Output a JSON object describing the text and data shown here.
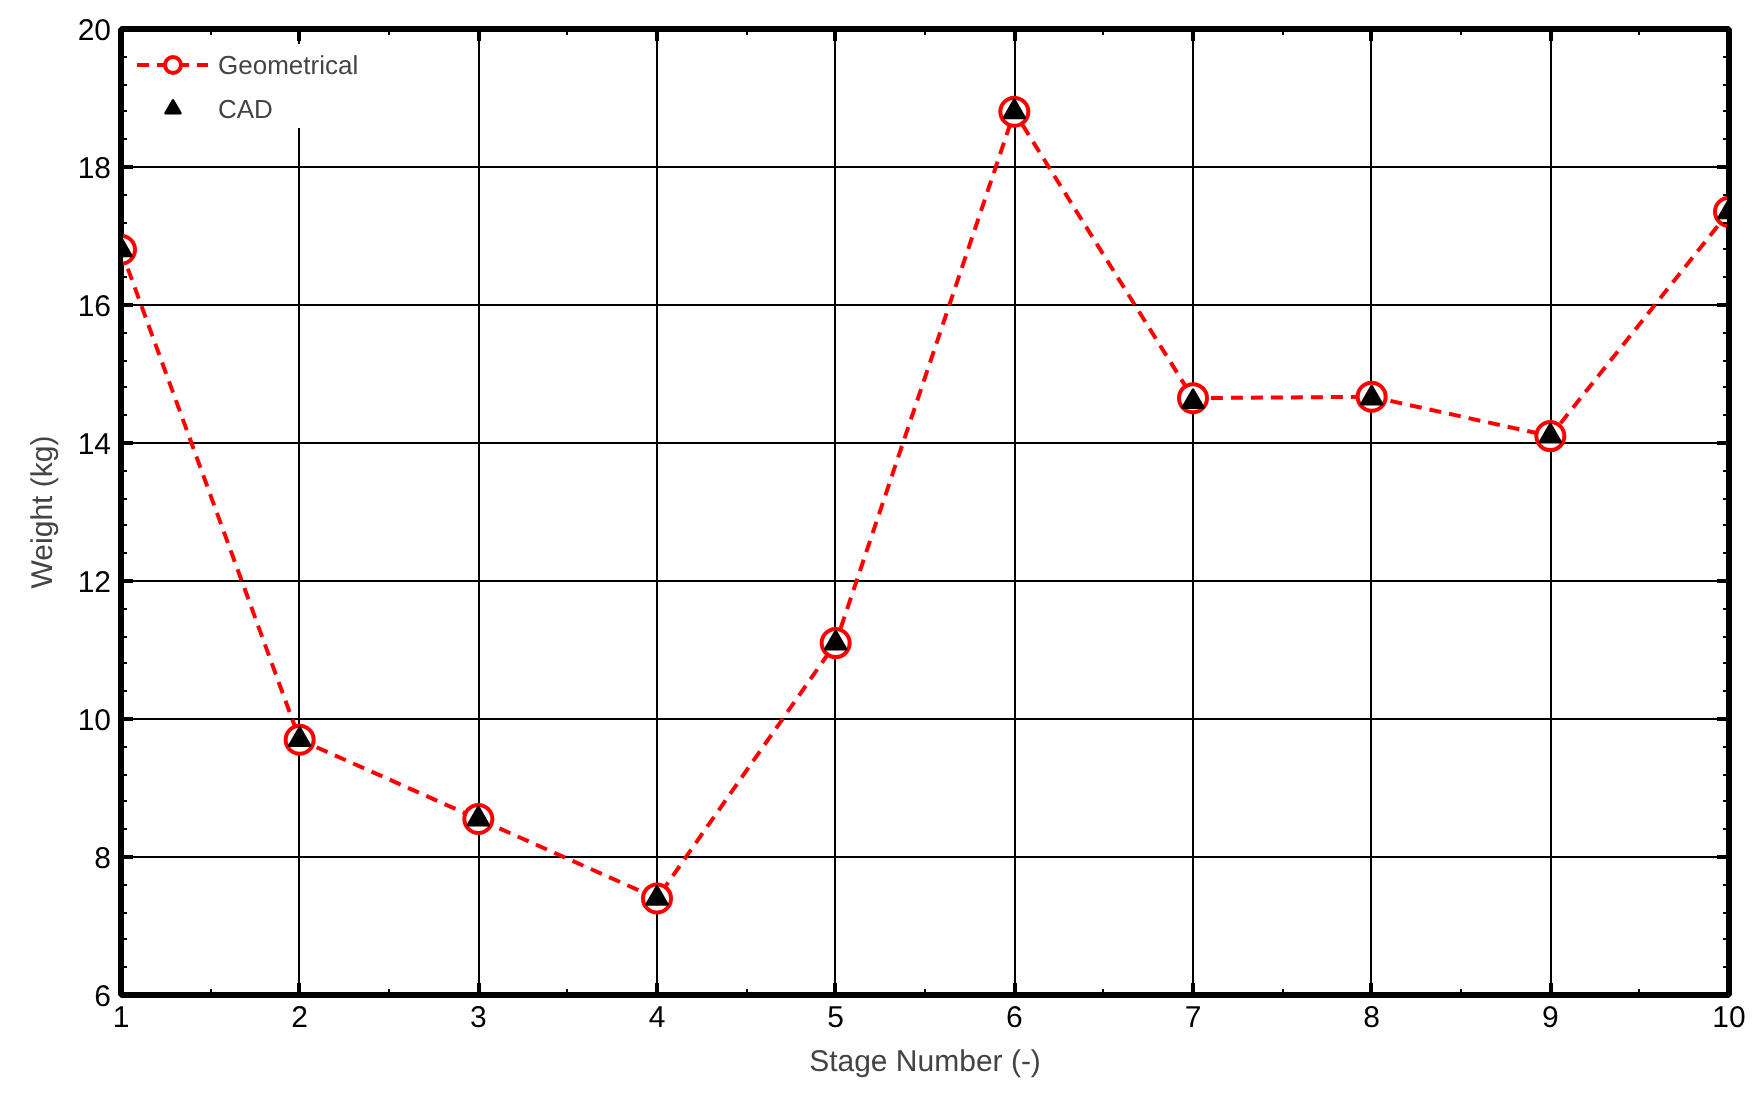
{
  "chart_data": {
    "type": "line",
    "xlabel": "Stage Number (-)",
    "ylabel": "Weight (kg)",
    "x": [
      1,
      2,
      3,
      4,
      5,
      6,
      7,
      8,
      9,
      10
    ],
    "series": [
      {
        "name": "CAD",
        "type": "scatter",
        "color": "#000000",
        "marker": "triangle",
        "values": [
          16.8,
          9.7,
          8.55,
          7.4,
          11.1,
          18.8,
          14.6,
          14.65,
          14.1,
          17.35
        ]
      },
      {
        "name": "Geometrical",
        "type": "line",
        "color": "#ff0000",
        "marker": "circle",
        "line_style": "dashed",
        "values": [
          16.8,
          9.7,
          8.55,
          7.4,
          11.1,
          18.8,
          14.65,
          14.67,
          14.1,
          17.35
        ]
      }
    ],
    "xlim": [
      1,
      10
    ],
    "ylim": [
      6,
      20
    ],
    "xticks": [
      1,
      2,
      3,
      4,
      5,
      6,
      7,
      8,
      9,
      10
    ],
    "yticks": [
      6,
      8,
      10,
      12,
      14,
      16,
      18,
      20
    ],
    "grid": true,
    "legend": "top left"
  }
}
